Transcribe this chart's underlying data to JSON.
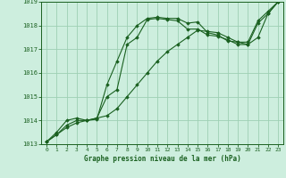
{
  "title": "Graphe pression niveau de la mer (hPa)",
  "bg_color": "#cdeede",
  "grid_color": "#9ecfb4",
  "line_color": "#1a6020",
  "xlim": [
    -0.5,
    23.5
  ],
  "ylim": [
    1013,
    1019
  ],
  "yticks": [
    1013,
    1014,
    1015,
    1016,
    1017,
    1018,
    1019
  ],
  "xticks": [
    0,
    1,
    2,
    3,
    4,
    5,
    6,
    7,
    8,
    9,
    10,
    11,
    12,
    13,
    14,
    15,
    16,
    17,
    18,
    19,
    20,
    21,
    22,
    23
  ],
  "series": [
    [
      1013.1,
      1013.4,
      1013.7,
      1013.9,
      1014.0,
      1014.1,
      1014.2,
      1014.5,
      1015.0,
      1015.5,
      1016.0,
      1016.5,
      1016.9,
      1017.2,
      1017.5,
      1017.8,
      1017.75,
      1017.7,
      1017.5,
      1017.3,
      1017.2,
      1017.5,
      1018.5,
      1019.0
    ],
    [
      1013.1,
      1013.4,
      1013.8,
      1014.0,
      1014.0,
      1014.1,
      1015.0,
      1015.3,
      1017.2,
      1017.5,
      1018.25,
      1018.3,
      1018.25,
      1018.2,
      1017.85,
      1017.85,
      1017.6,
      1017.55,
      1017.4,
      1017.2,
      1017.2,
      1018.1,
      1018.5,
      1019.0
    ],
    [
      1013.1,
      1013.5,
      1014.0,
      1014.1,
      1014.0,
      1014.05,
      1015.5,
      1016.5,
      1017.5,
      1018.0,
      1018.3,
      1018.35,
      1018.3,
      1018.3,
      1018.1,
      1018.15,
      1017.7,
      1017.6,
      1017.35,
      1017.3,
      1017.3,
      1018.2,
      1018.6,
      1019.0
    ]
  ]
}
